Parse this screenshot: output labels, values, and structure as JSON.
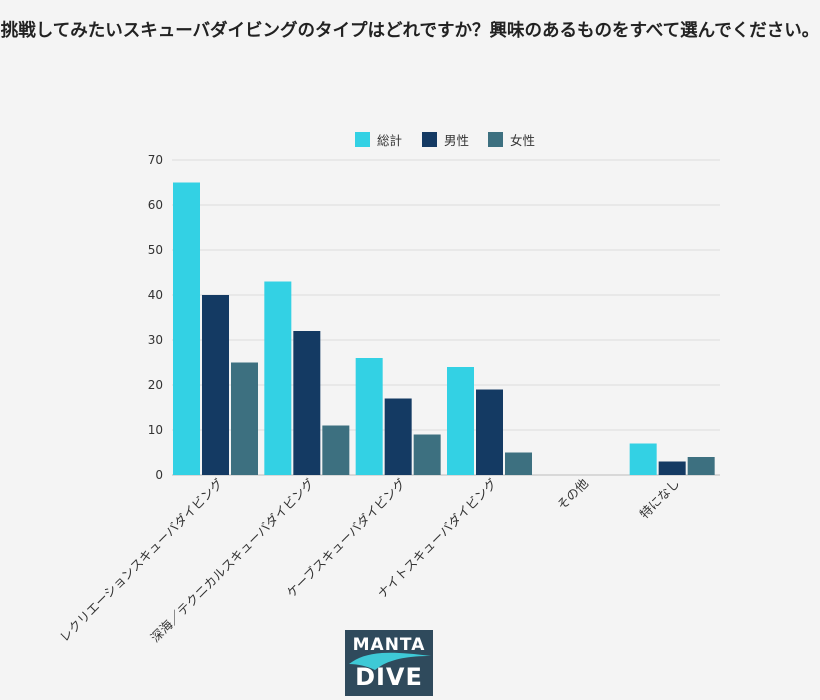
{
  "chart_data": {
    "type": "bar",
    "title": "挑戦してみたいスキューバダイビングのタイプはどれですか？興味のあるものをすべて選んでください。",
    "categories": [
      "レクリエーションスキューバダイビング",
      "深海／テクニカルスキューバダイビング",
      "ケーブスキューバダイビング",
      "ナイトスキューバダイビング",
      "その他",
      "特になし"
    ],
    "series": [
      {
        "name": "総計",
        "color": "#33d1e4",
        "values": [
          65,
          43,
          26,
          24,
          0,
          7
        ]
      },
      {
        "name": "男性",
        "color": "#143a63",
        "values": [
          40,
          32,
          17,
          19,
          0,
          3
        ]
      },
      {
        "name": "女性",
        "color": "#3d7080",
        "values": [
          25,
          11,
          9,
          5,
          0,
          4
        ]
      }
    ],
    "ylim": [
      0,
      70
    ],
    "yticks": [
      0,
      10,
      20,
      30,
      40,
      50,
      60,
      70
    ],
    "grid": true,
    "legend": "top-center",
    "xlabel": "",
    "ylabel": ""
  },
  "logo": {
    "line1": "MANTA",
    "line2": "DIVE"
  }
}
